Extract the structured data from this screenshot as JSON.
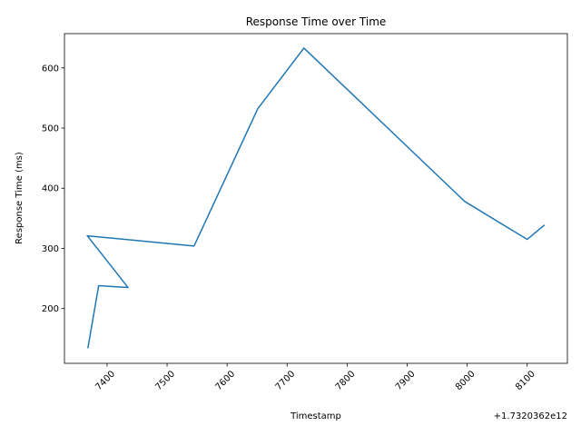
{
  "chart_data": {
    "type": "line",
    "title": "Response Time over Time",
    "x_label": "Timestamp",
    "y_label": "Response Time (ms)",
    "x_offset": "+1.7320362e12",
    "x": [
      7368,
      7386,
      7435,
      7367,
      7545,
      7651,
      7728,
      7996,
      8100,
      8129
    ],
    "series": [
      {
        "name": "Response Time",
        "color": "#1f77b4",
        "values": [
          134,
          238,
          235,
          321,
          304,
          532,
          633,
          378,
          315,
          339
        ]
      }
    ],
    "xlim": [
      7329,
      8167
    ],
    "xticks": [
      7400,
      7500,
      7600,
      7700,
      7800,
      7900,
      8000,
      8100
    ],
    "ylim": [
      109,
      657
    ],
    "yticks": [
      200,
      300,
      400,
      500,
      600
    ],
    "grid": false
  }
}
